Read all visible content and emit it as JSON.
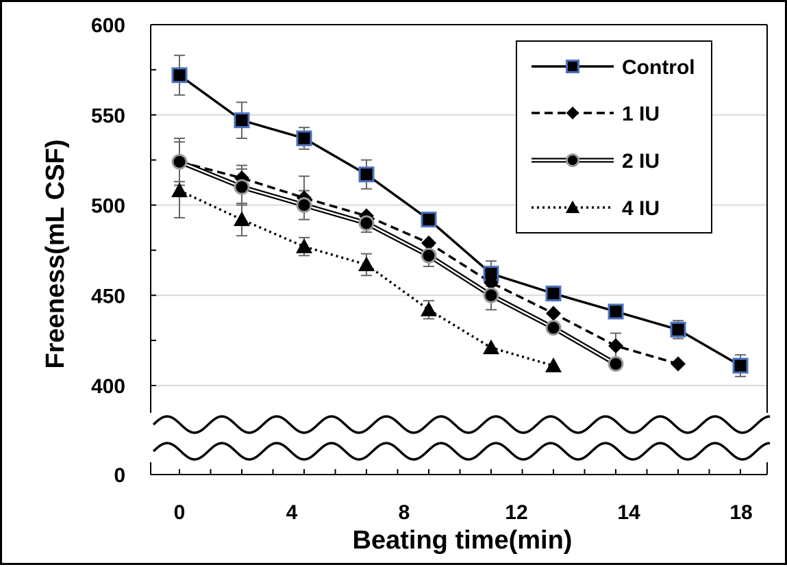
{
  "chart_data": {
    "type": "line",
    "xlabel": "Beating time(min)",
    "ylabel": "Freeness(mL CSF)",
    "x_ticks": [
      "0",
      "4",
      "8",
      "12",
      "14",
      "18"
    ],
    "y_ticks": [
      "600",
      "550",
      "500",
      "450",
      "400",
      "0"
    ],
    "x_values": [
      0,
      2,
      4,
      6,
      8,
      10,
      12,
      14,
      16,
      18
    ],
    "ylim": [
      400,
      600
    ],
    "axis_break": true,
    "grid": "horizontal",
    "legend_position": "top-right",
    "series": [
      {
        "name": "Control",
        "x": [
          0,
          2,
          4,
          6,
          8,
          10,
          12,
          14,
          16,
          18
        ],
        "y": [
          572,
          547,
          537,
          517,
          492,
          462,
          451,
          441,
          431,
          411
        ],
        "err": [
          11,
          10,
          6,
          8,
          0,
          7,
          4,
          0,
          5,
          6
        ],
        "marker": "square",
        "line_style": "solid",
        "marker_fill": "#000000",
        "marker_edge": "#4a72c0"
      },
      {
        "name": "1 IU",
        "x": [
          0,
          2,
          4,
          6,
          8,
          10,
          12,
          14,
          16
        ],
        "y": [
          524,
          515,
          504,
          494,
          479,
          457,
          440,
          422,
          412
        ],
        "err": [
          13,
          7,
          12,
          0,
          0,
          0,
          0,
          7,
          0
        ],
        "marker": "diamond",
        "line_style": "dashed",
        "marker_fill": "#000000"
      },
      {
        "name": "2 IU",
        "x": [
          0,
          2,
          4,
          6,
          8,
          10,
          12,
          14
        ],
        "y": [
          524,
          510,
          500,
          490,
          472,
          450,
          432,
          412
        ],
        "err": [
          11,
          10,
          8,
          5,
          6,
          8,
          0,
          0
        ],
        "marker": "circle",
        "line_style": "double",
        "marker_fill": "#000000",
        "marker_edge": "#9a9a9a"
      },
      {
        "name": "4 IU",
        "x": [
          0,
          2,
          4,
          6,
          8,
          10,
          12
        ],
        "y": [
          508,
          492,
          477,
          467,
          442,
          421,
          411
        ],
        "err": [
          15,
          9,
          5,
          6,
          5,
          0,
          0
        ],
        "marker": "triangle",
        "line_style": "dotted",
        "marker_fill": "#000000"
      }
    ]
  }
}
